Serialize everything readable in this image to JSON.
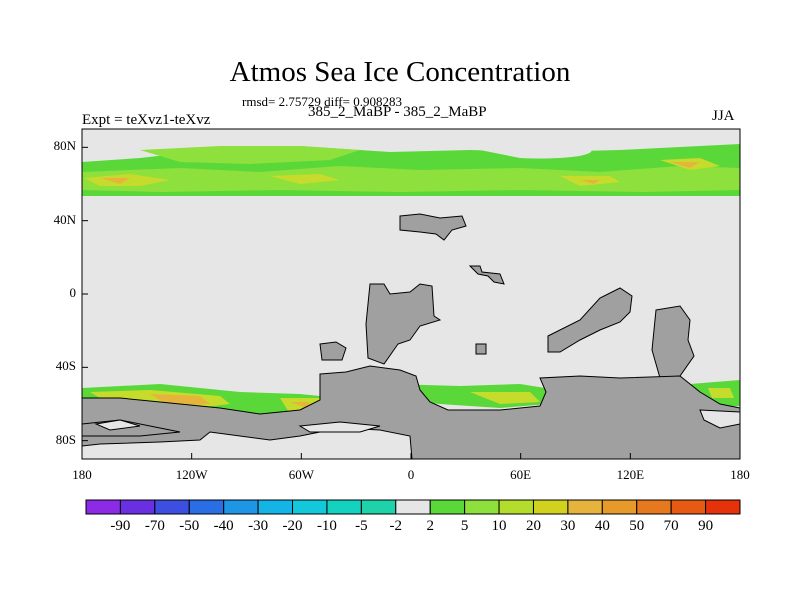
{
  "figure": {
    "title": "Atmos Sea Ice Concentration",
    "stats_line": "rmsd= 2.75729 diff= 0.908283",
    "experiment_label": "Expt = teXvz1-teXvz",
    "runs_label": "385_2_MaBP - 385_2_MaBP",
    "season_label": "JJA"
  },
  "axes": {
    "y_ticks": [
      "80N",
      "40N",
      "0",
      "40S",
      "80S"
    ],
    "x_ticks": [
      "180",
      "120W",
      "60W",
      "0",
      "60E",
      "120E",
      "180"
    ]
  },
  "colors": {
    "ocean_zero": "#e6e6e6",
    "land": "#a0a0a0",
    "light_green": "#8ee03c",
    "green": "#5ad83a",
    "yellow_green": "#c6dc2c",
    "orange_tan": "#e6b43c"
  },
  "colorbar": {
    "labels": [
      "-90",
      "-70",
      "-50",
      "-40",
      "-30",
      "-20",
      "-10",
      "-5",
      "-2",
      "2",
      "5",
      "10",
      "20",
      "30",
      "40",
      "50",
      "70",
      "90"
    ],
    "colors": [
      "#8c2ae6",
      "#6a2fe0",
      "#3d4fe0",
      "#2a6ee6",
      "#1e96e6",
      "#14b4e6",
      "#14c8dc",
      "#14d2c0",
      "#1ed2aa",
      "#e6e6e6",
      "#5ad83a",
      "#8ee03c",
      "#b4dc2c",
      "#d2d21e",
      "#e6b43c",
      "#e69a2a",
      "#e6781e",
      "#e65a14",
      "#e6320a"
    ]
  }
}
